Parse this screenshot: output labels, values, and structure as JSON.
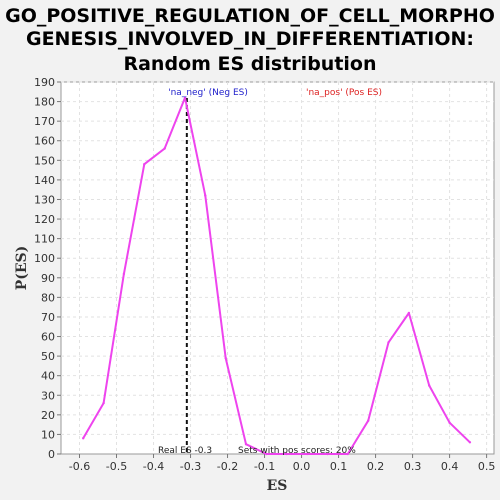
{
  "chart_data": {
    "type": "line",
    "title_lines": [
      "GO_POSITIVE_REGULATION_OF_CELL_MORPHO",
      "GENESIS_INVOLVED_IN_DIFFERENTIATION:",
      "Random ES distribution"
    ],
    "xlabel": "ES",
    "ylabel": "P(ES)",
    "xlim": [
      -0.65,
      0.52
    ],
    "ylim": [
      0,
      190
    ],
    "x_ticks": [
      -0.6,
      -0.5,
      -0.4,
      -0.3,
      -0.2,
      -0.1,
      0.0,
      0.1,
      0.2,
      0.3,
      0.4,
      0.5
    ],
    "x_tick_labels": [
      "-0.6",
      "-0.5",
      "-0.4",
      "-0.3",
      "-0.2",
      "-0.1",
      "0.0",
      "0.1",
      "0.2",
      "0.3",
      "0.4",
      "0.5"
    ],
    "y_ticks": [
      0,
      10,
      20,
      30,
      40,
      50,
      60,
      70,
      80,
      90,
      100,
      110,
      120,
      130,
      140,
      150,
      160,
      170,
      180,
      190
    ],
    "y_tick_labels": [
      "0",
      "10",
      "20",
      "30",
      "40",
      "50",
      "60",
      "70",
      "80",
      "90",
      "100",
      "110",
      "120",
      "130",
      "140",
      "150",
      "160",
      "170",
      "180",
      "190"
    ],
    "grid": true,
    "line_color": "#ee44ee",
    "series": [
      {
        "x": [
          -0.59,
          -0.535,
          -0.48,
          -0.425,
          -0.37,
          -0.315,
          -0.26,
          -0.205,
          -0.15,
          -0.095,
          -0.04,
          0.015,
          0.07,
          0.125,
          0.18,
          0.235,
          0.29,
          0.345,
          0.4,
          0.455
        ],
        "values": [
          8,
          26,
          92,
          148,
          156,
          182,
          132,
          49,
          5,
          0,
          0,
          0,
          0,
          0,
          17,
          57,
          72,
          35,
          16,
          6
        ]
      }
    ],
    "real_es": -0.31,
    "annotations": {
      "neg_label": "'na_neg' (Neg ES)",
      "neg_color": "#2222cc",
      "pos_label": "'na_pos' (Pos ES)",
      "pos_color": "#dd2222",
      "real_es_label": "Real ES -0.3",
      "sets_pos_label": "Sets with pos scores: 20%"
    }
  }
}
